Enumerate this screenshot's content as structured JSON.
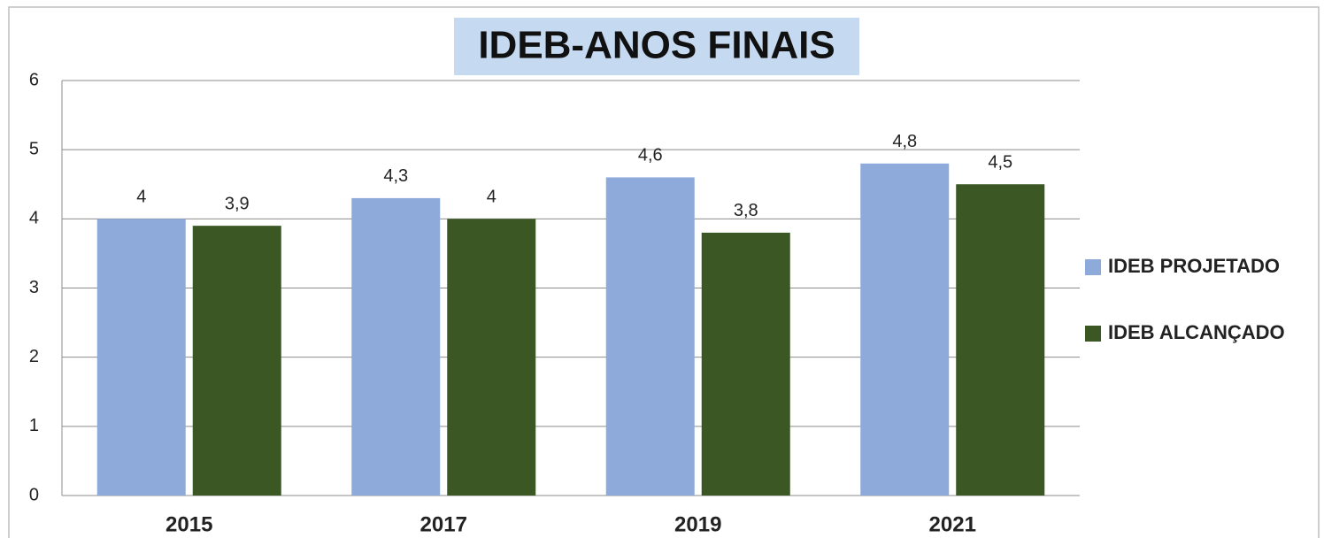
{
  "chart_data": {
    "type": "bar",
    "title": "IDEB-ANOS FINAIS",
    "categories": [
      "2015",
      "2017",
      "2019",
      "2021"
    ],
    "series": [
      {
        "name": "IDEB PROJETADO",
        "color": "#8eaadb",
        "values": [
          4,
          4.3,
          4.6,
          4.8
        ],
        "value_labels": [
          "4",
          "4,3",
          "4,6",
          "4,8"
        ]
      },
      {
        "name": "IDEB ALCANÇADO",
        "color": "#3a5724",
        "values": [
          3.9,
          4,
          3.8,
          4.5
        ],
        "value_labels": [
          "3,9",
          "4",
          "3,8",
          "4,5"
        ]
      }
    ],
    "ylim": [
      0,
      6
    ],
    "yticks": [
      0,
      1,
      2,
      3,
      4,
      5,
      6
    ],
    "grid": true,
    "legend": "right"
  }
}
